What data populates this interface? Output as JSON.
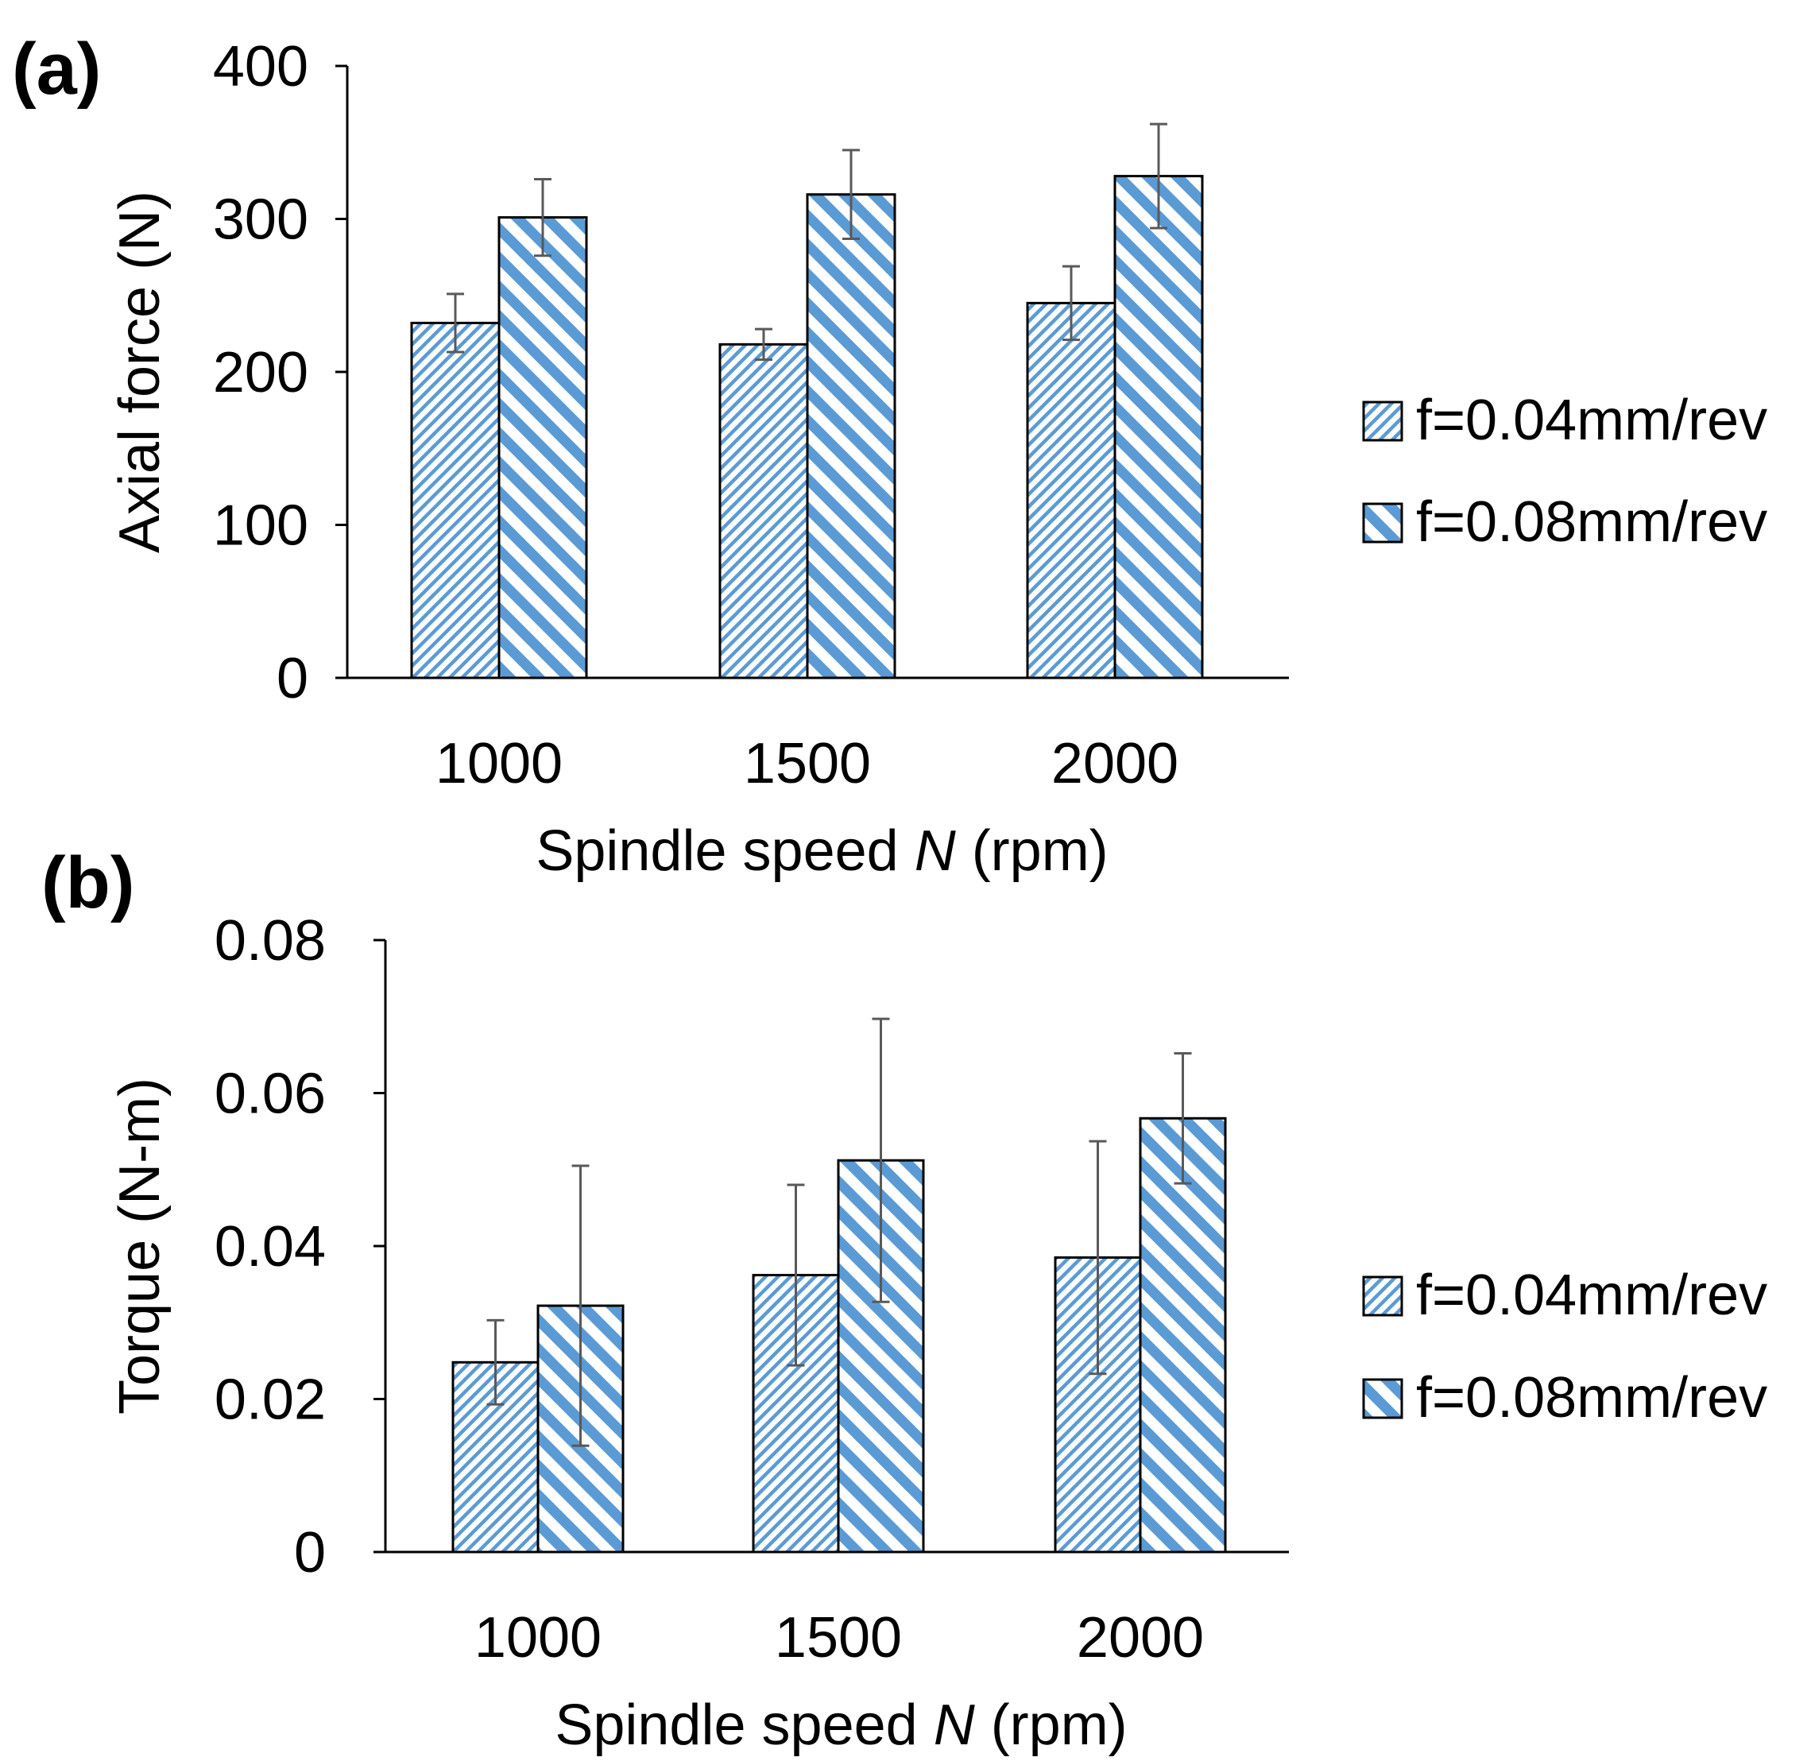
{
  "colors": {
    "bar_color": "#5b9bd5",
    "axis_color": "#000000",
    "errorbar_color": "#595959",
    "background": "#ffffff"
  },
  "chart_data": [
    {
      "panel_label": "(a)",
      "type": "bar",
      "categories": [
        "1000",
        "1500",
        "2000"
      ],
      "series": [
        {
          "name": "f=0.04mm/rev",
          "pattern": "fine-hatch",
          "values": [
            232,
            218,
            245
          ],
          "errors": [
            19,
            10,
            24
          ]
        },
        {
          "name": "f=0.08mm/rev",
          "pattern": "wide-hatch",
          "values": [
            301,
            316,
            328
          ],
          "errors": [
            25,
            29,
            34
          ]
        }
      ],
      "xlabel": {
        "prefix": "Spindle speed ",
        "italic": "N",
        "suffix": " (rpm)"
      },
      "ylabel": "Axial force (N)",
      "ylim": [
        0,
        400
      ],
      "yticks": [
        "0",
        "100",
        "200",
        "300",
        "400"
      ],
      "legend": "right"
    },
    {
      "panel_label": "(b)",
      "type": "bar",
      "categories": [
        "1000",
        "1500",
        "2000"
      ],
      "series": [
        {
          "name": "f=0.04mm/rev",
          "pattern": "fine-hatch",
          "values": [
            0.0248,
            0.0362,
            0.0385
          ],
          "errors": [
            0.0055,
            0.0118,
            0.0152
          ]
        },
        {
          "name": "f=0.08mm/rev",
          "pattern": "wide-hatch",
          "values": [
            0.0322,
            0.0512,
            0.0567
          ],
          "errors": [
            0.0183,
            0.0185,
            0.0085
          ]
        }
      ],
      "xlabel": {
        "prefix": "Spindle speed ",
        "italic": "N",
        "suffix": " (rpm)"
      },
      "ylabel": "Torque (N-m)",
      "ylim": [
        0,
        0.08
      ],
      "yticks": [
        "0",
        "0.02",
        "0.04",
        "0.06",
        "0.08"
      ],
      "legend": "right"
    }
  ]
}
